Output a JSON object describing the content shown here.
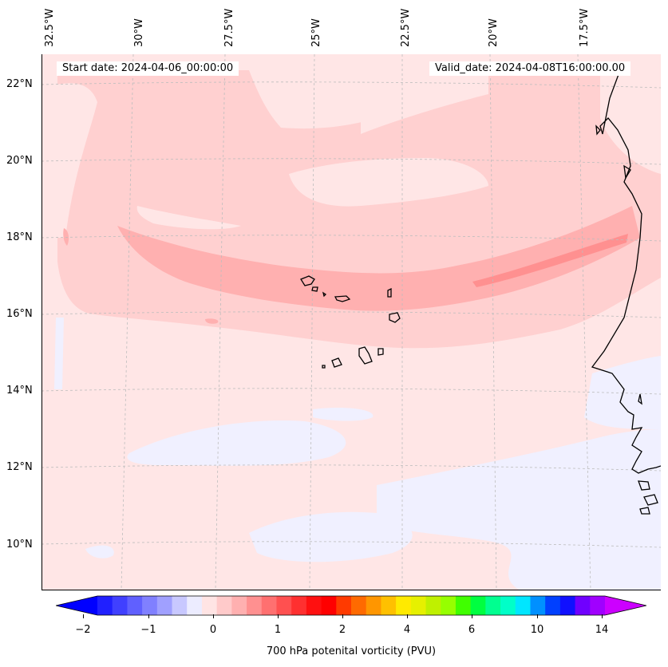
{
  "map": {
    "longitude_labels": [
      "32.5°W",
      "30°W",
      "27.5°W",
      "25°W",
      "22.5°W",
      "20°W",
      "17.5°W"
    ],
    "latitude_labels": [
      "22°N",
      "20°N",
      "18°N",
      "16°N",
      "14°N",
      "12°N",
      "10°N"
    ],
    "start_date": "Start date: 2024-04-06_00:00:00",
    "valid_date": "Valid_date: 2024-04-08T16:00:00.00",
    "colors": {
      "background_field": "#ffe6e6",
      "light_red": "#ffd0d0",
      "medium_red": "#ffb0b0",
      "strong_red": "#ff9090",
      "light_blue": "#f0f0ff",
      "coastline": "#000000",
      "gridline": "#bdbdbd"
    }
  },
  "colorbar": {
    "title": "700 hPa potenital vorticity (PVU)",
    "tick_labels": [
      "−2",
      "−1",
      "0",
      "1",
      "2",
      "4",
      "6",
      "10",
      "14"
    ],
    "colors": [
      "#0000ff",
      "#2020ff",
      "#4040ff",
      "#6060ff",
      "#8080ff",
      "#a0a0ff",
      "#c8c8ff",
      "#ececff",
      "#ffe4e4",
      "#ffcaca",
      "#ffb0b0",
      "#ff9090",
      "#ff7070",
      "#ff5050",
      "#ff3030",
      "#ff1010",
      "#ff0000",
      "#ff3a00",
      "#ff6a00",
      "#ff9600",
      "#ffc000",
      "#ffea00",
      "#e6f000",
      "#bff000",
      "#96ff00",
      "#40ff00",
      "#00ff40",
      "#00ff90",
      "#00ffc8",
      "#00e6ff",
      "#0090ff",
      "#0040ff",
      "#1010ff",
      "#7000ff",
      "#a000ff",
      "#cc00ff"
    ]
  }
}
